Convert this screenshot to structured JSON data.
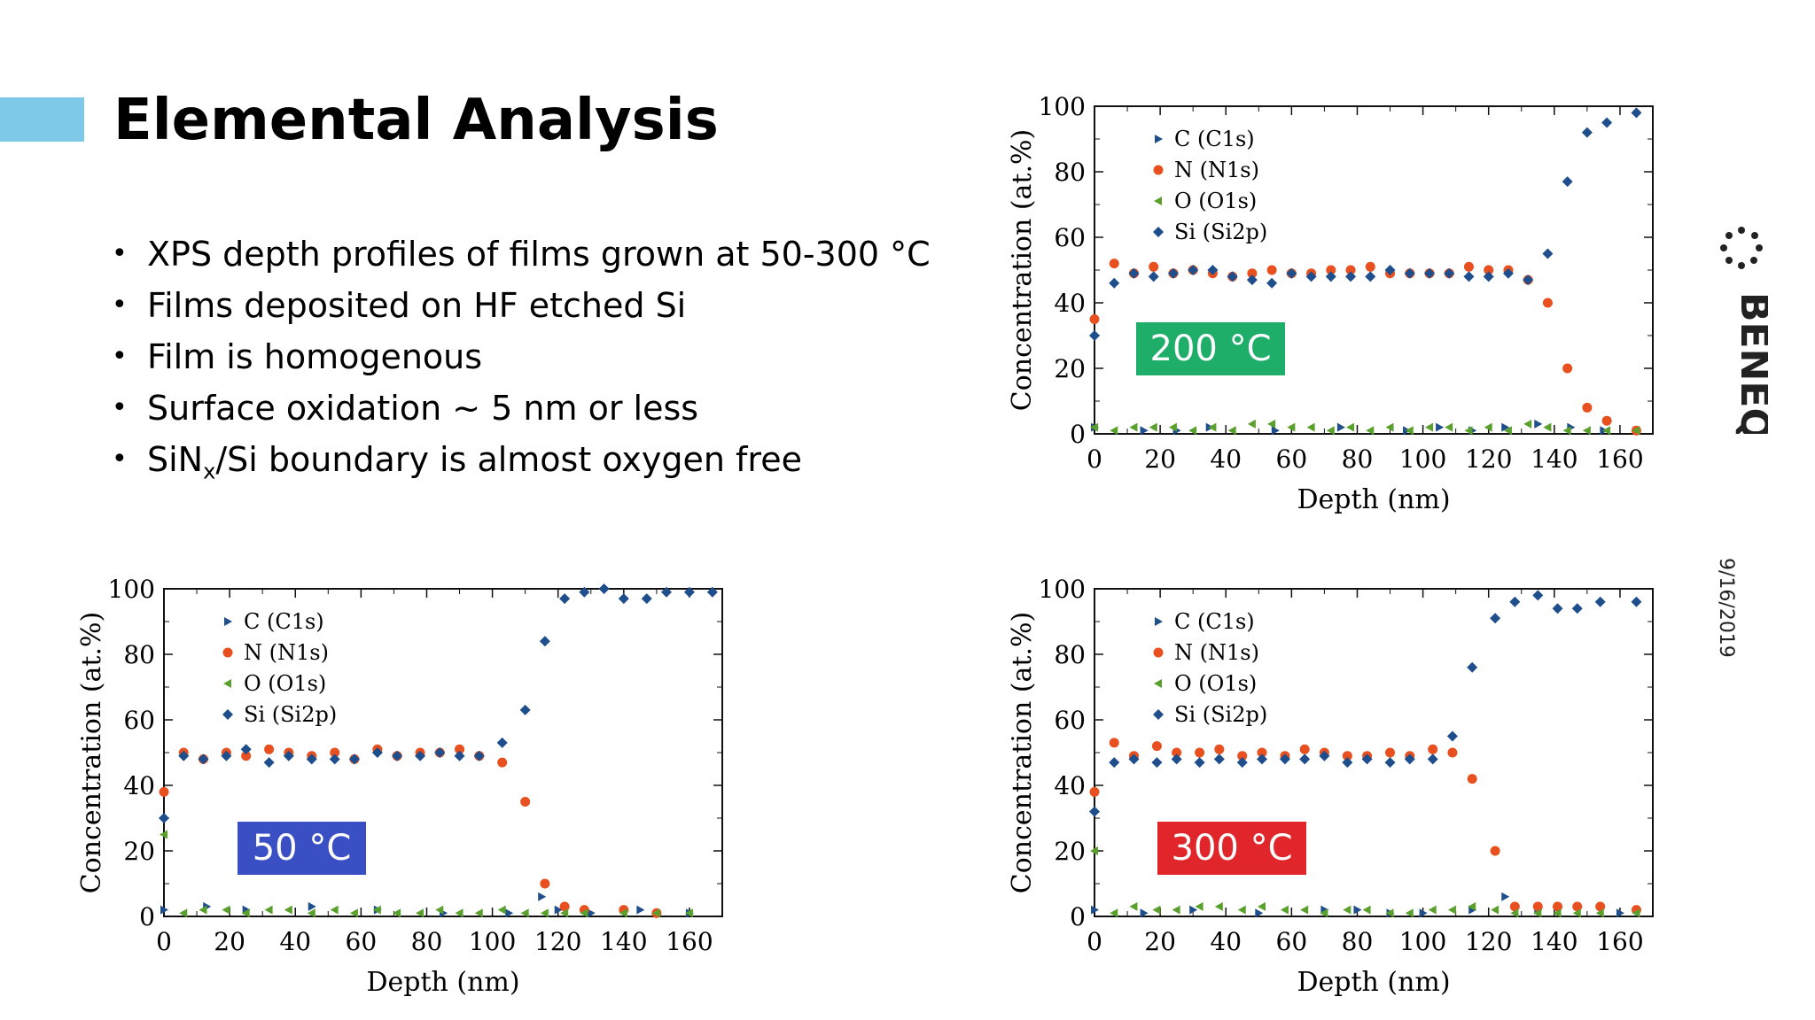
{
  "slide": {
    "title": "Elemental Analysis",
    "bullets": [
      {
        "text": "XPS depth profiles of films grown at 50-300 °C"
      },
      {
        "text": "Films deposited on HF etched Si"
      },
      {
        "text": "Film is homogenous"
      },
      {
        "text": "Surface oxidation ~ 5 nm or less"
      },
      {
        "pre": "SiN",
        "sub": "x",
        "post": "/Si boundary is almost oxygen free"
      }
    ],
    "date": "9/16/2019",
    "logo_text": "BENEQ",
    "accent_color": "#7ec8e8"
  },
  "chart_data": [
    {
      "type": "scatter",
      "badge": "200 °C",
      "badge_color": "#1fae6a",
      "xlabel": "Depth (nm)",
      "ylabel": "Concentration (at.%)",
      "xlim": [
        0,
        170
      ],
      "ylim": [
        0,
        100
      ],
      "xticks": [
        0,
        20,
        40,
        60,
        80,
        100,
        120,
        140,
        160
      ],
      "yticks": [
        0,
        20,
        40,
        60,
        80,
        100
      ],
      "legend_position": "top-left",
      "series": [
        {
          "name": "C (C1s)",
          "marker": "triangle-right",
          "color": "#1f4e8c",
          "x": [
            0,
            15,
            25,
            35,
            55,
            75,
            95,
            105,
            115,
            125,
            135,
            145,
            155,
            165
          ],
          "y": [
            2,
            1,
            1,
            2,
            1,
            2,
            1,
            2,
            1,
            2,
            3,
            2,
            1,
            1
          ]
        },
        {
          "name": "N (N1s)",
          "marker": "circle",
          "color": "#e8501f",
          "x": [
            0,
            6,
            12,
            18,
            24,
            30,
            36,
            42,
            48,
            54,
            60,
            66,
            72,
            78,
            84,
            90,
            96,
            102,
            108,
            114,
            120,
            126,
            132,
            138,
            144,
            150,
            156,
            165
          ],
          "y": [
            35,
            52,
            49,
            51,
            49,
            50,
            49,
            48,
            49,
            50,
            49,
            49,
            50,
            50,
            51,
            49,
            49,
            49,
            49,
            51,
            50,
            50,
            47,
            40,
            20,
            8,
            4,
            1
          ]
        },
        {
          "name": "O (O1s)",
          "marker": "triangle-left",
          "color": "#5aa02c",
          "x": [
            0,
            6,
            12,
            18,
            24,
            30,
            36,
            42,
            48,
            54,
            60,
            66,
            72,
            78,
            84,
            90,
            96,
            102,
            108,
            114,
            120,
            126,
            132,
            138,
            144,
            150,
            156,
            165
          ],
          "y": [
            2,
            1,
            2,
            2,
            2,
            1,
            2,
            1,
            3,
            3,
            2,
            2,
            1,
            2,
            1,
            2,
            1,
            2,
            2,
            1,
            2,
            1,
            3,
            2,
            1,
            1,
            1,
            1
          ]
        },
        {
          "name": "Si (Si2p)",
          "marker": "diamond",
          "color": "#1f4e8c",
          "x": [
            0,
            6,
            12,
            18,
            24,
            30,
            36,
            42,
            48,
            54,
            60,
            66,
            72,
            78,
            84,
            90,
            96,
            102,
            108,
            114,
            120,
            126,
            132,
            138,
            144,
            150,
            156,
            165
          ],
          "y": [
            30,
            46,
            49,
            48,
            49,
            50,
            50,
            48,
            47,
            46,
            49,
            48,
            48,
            48,
            48,
            50,
            49,
            49,
            49,
            48,
            48,
            49,
            47,
            55,
            77,
            92,
            95,
            98
          ]
        }
      ]
    },
    {
      "type": "scatter",
      "badge": "50 °C",
      "badge_color": "#3b4fc4",
      "xlabel": "Depth (nm)",
      "ylabel": "Concentration (at.%)",
      "xlim": [
        0,
        170
      ],
      "ylim": [
        0,
        100
      ],
      "xticks": [
        0,
        20,
        40,
        60,
        80,
        100,
        120,
        140,
        160
      ],
      "yticks": [
        0,
        20,
        40,
        60,
        80,
        100
      ],
      "legend_position": "top-left",
      "series": [
        {
          "name": "C (C1s)",
          "marker": "triangle-right",
          "color": "#1f4e8c",
          "x": [
            0,
            13,
            25,
            45,
            65,
            85,
            105,
            115,
            120,
            130,
            145,
            160
          ],
          "y": [
            2,
            3,
            2,
            3,
            2,
            1,
            1,
            6,
            2,
            1,
            2,
            1
          ]
        },
        {
          "name": "N (N1s)",
          "marker": "circle",
          "color": "#e8501f",
          "x": [
            0,
            6,
            12,
            19,
            25,
            32,
            38,
            45,
            52,
            58,
            65,
            71,
            78,
            84,
            90,
            96,
            103,
            110,
            116,
            122,
            128,
            140,
            150
          ],
          "y": [
            38,
            50,
            48,
            50,
            49,
            51,
            50,
            49,
            50,
            48,
            51,
            49,
            50,
            50,
            51,
            49,
            47,
            35,
            10,
            3,
            2,
            2,
            1
          ]
        },
        {
          "name": "O (O1s)",
          "marker": "triangle-left",
          "color": "#5aa02c",
          "x": [
            0,
            6,
            12,
            19,
            25,
            32,
            38,
            45,
            52,
            58,
            65,
            71,
            78,
            84,
            90,
            96,
            103,
            110,
            116,
            122,
            128,
            140,
            150,
            160
          ],
          "y": [
            25,
            1,
            2,
            2,
            1,
            2,
            2,
            1,
            2,
            1,
            2,
            1,
            1,
            2,
            1,
            1,
            2,
            1,
            1,
            1,
            1,
            1,
            1,
            1
          ]
        },
        {
          "name": "Si (Si2p)",
          "marker": "diamond",
          "color": "#1f4e8c",
          "x": [
            0,
            6,
            12,
            19,
            25,
            32,
            38,
            45,
            52,
            58,
            65,
            71,
            78,
            84,
            90,
            96,
            103,
            110,
            116,
            122,
            128,
            134,
            140,
            147,
            153,
            160,
            167
          ],
          "y": [
            30,
            49,
            48,
            49,
            51,
            47,
            49,
            48,
            48,
            48,
            50,
            49,
            49,
            50,
            49,
            49,
            53,
            63,
            84,
            97,
            99,
            100,
            97,
            97,
            99,
            99,
            99
          ]
        }
      ]
    },
    {
      "type": "scatter",
      "badge": "300 °C",
      "badge_color": "#e0262a",
      "xlabel": "Depth (nm)",
      "ylabel": "Concentration (at.%)",
      "xlim": [
        0,
        170
      ],
      "ylim": [
        0,
        100
      ],
      "xticks": [
        0,
        20,
        40,
        60,
        80,
        100,
        120,
        140,
        160
      ],
      "yticks": [
        0,
        20,
        40,
        60,
        80,
        100
      ],
      "legend_position": "top-left",
      "series": [
        {
          "name": "C (C1s)",
          "marker": "triangle-right",
          "color": "#1f4e8c",
          "x": [
            0,
            15,
            30,
            50,
            70,
            80,
            90,
            100,
            115,
            125,
            135,
            160
          ],
          "y": [
            2,
            1,
            2,
            1,
            2,
            2,
            1,
            1,
            2,
            6,
            2,
            1
          ]
        },
        {
          "name": "N (N1s)",
          "marker": "circle",
          "color": "#e8501f",
          "x": [
            0,
            6,
            12,
            19,
            25,
            32,
            38,
            45,
            51,
            58,
            64,
            70,
            77,
            83,
            90,
            96,
            103,
            109,
            115,
            122,
            128,
            135,
            141,
            147,
            154,
            165
          ],
          "y": [
            38,
            53,
            49,
            52,
            50,
            50,
            51,
            49,
            50,
            49,
            51,
            50,
            49,
            49,
            50,
            49,
            51,
            50,
            42,
            20,
            3,
            3,
            3,
            3,
            3,
            2
          ]
        },
        {
          "name": "O (O1s)",
          "marker": "triangle-left",
          "color": "#5aa02c",
          "x": [
            0,
            6,
            12,
            19,
            25,
            32,
            38,
            45,
            51,
            58,
            64,
            70,
            77,
            83,
            90,
            96,
            103,
            109,
            115,
            122,
            128,
            135,
            141,
            147,
            154,
            165
          ],
          "y": [
            20,
            1,
            3,
            2,
            2,
            3,
            3,
            2,
            3,
            2,
            2,
            1,
            2,
            2,
            1,
            1,
            2,
            2,
            3,
            2,
            1,
            1,
            1,
            1,
            1,
            1
          ]
        },
        {
          "name": "Si (Si2p)",
          "marker": "diamond",
          "color": "#1f4e8c",
          "x": [
            0,
            6,
            12,
            19,
            25,
            32,
            38,
            45,
            51,
            58,
            64,
            70,
            77,
            83,
            90,
            96,
            103,
            109,
            115,
            122,
            128,
            135,
            141,
            147,
            154,
            165
          ],
          "y": [
            32,
            47,
            48,
            47,
            48,
            47,
            48,
            47,
            48,
            48,
            48,
            49,
            47,
            48,
            47,
            48,
            48,
            55,
            76,
            91,
            96,
            98,
            94,
            94,
            96,
            96
          ]
        }
      ]
    }
  ]
}
